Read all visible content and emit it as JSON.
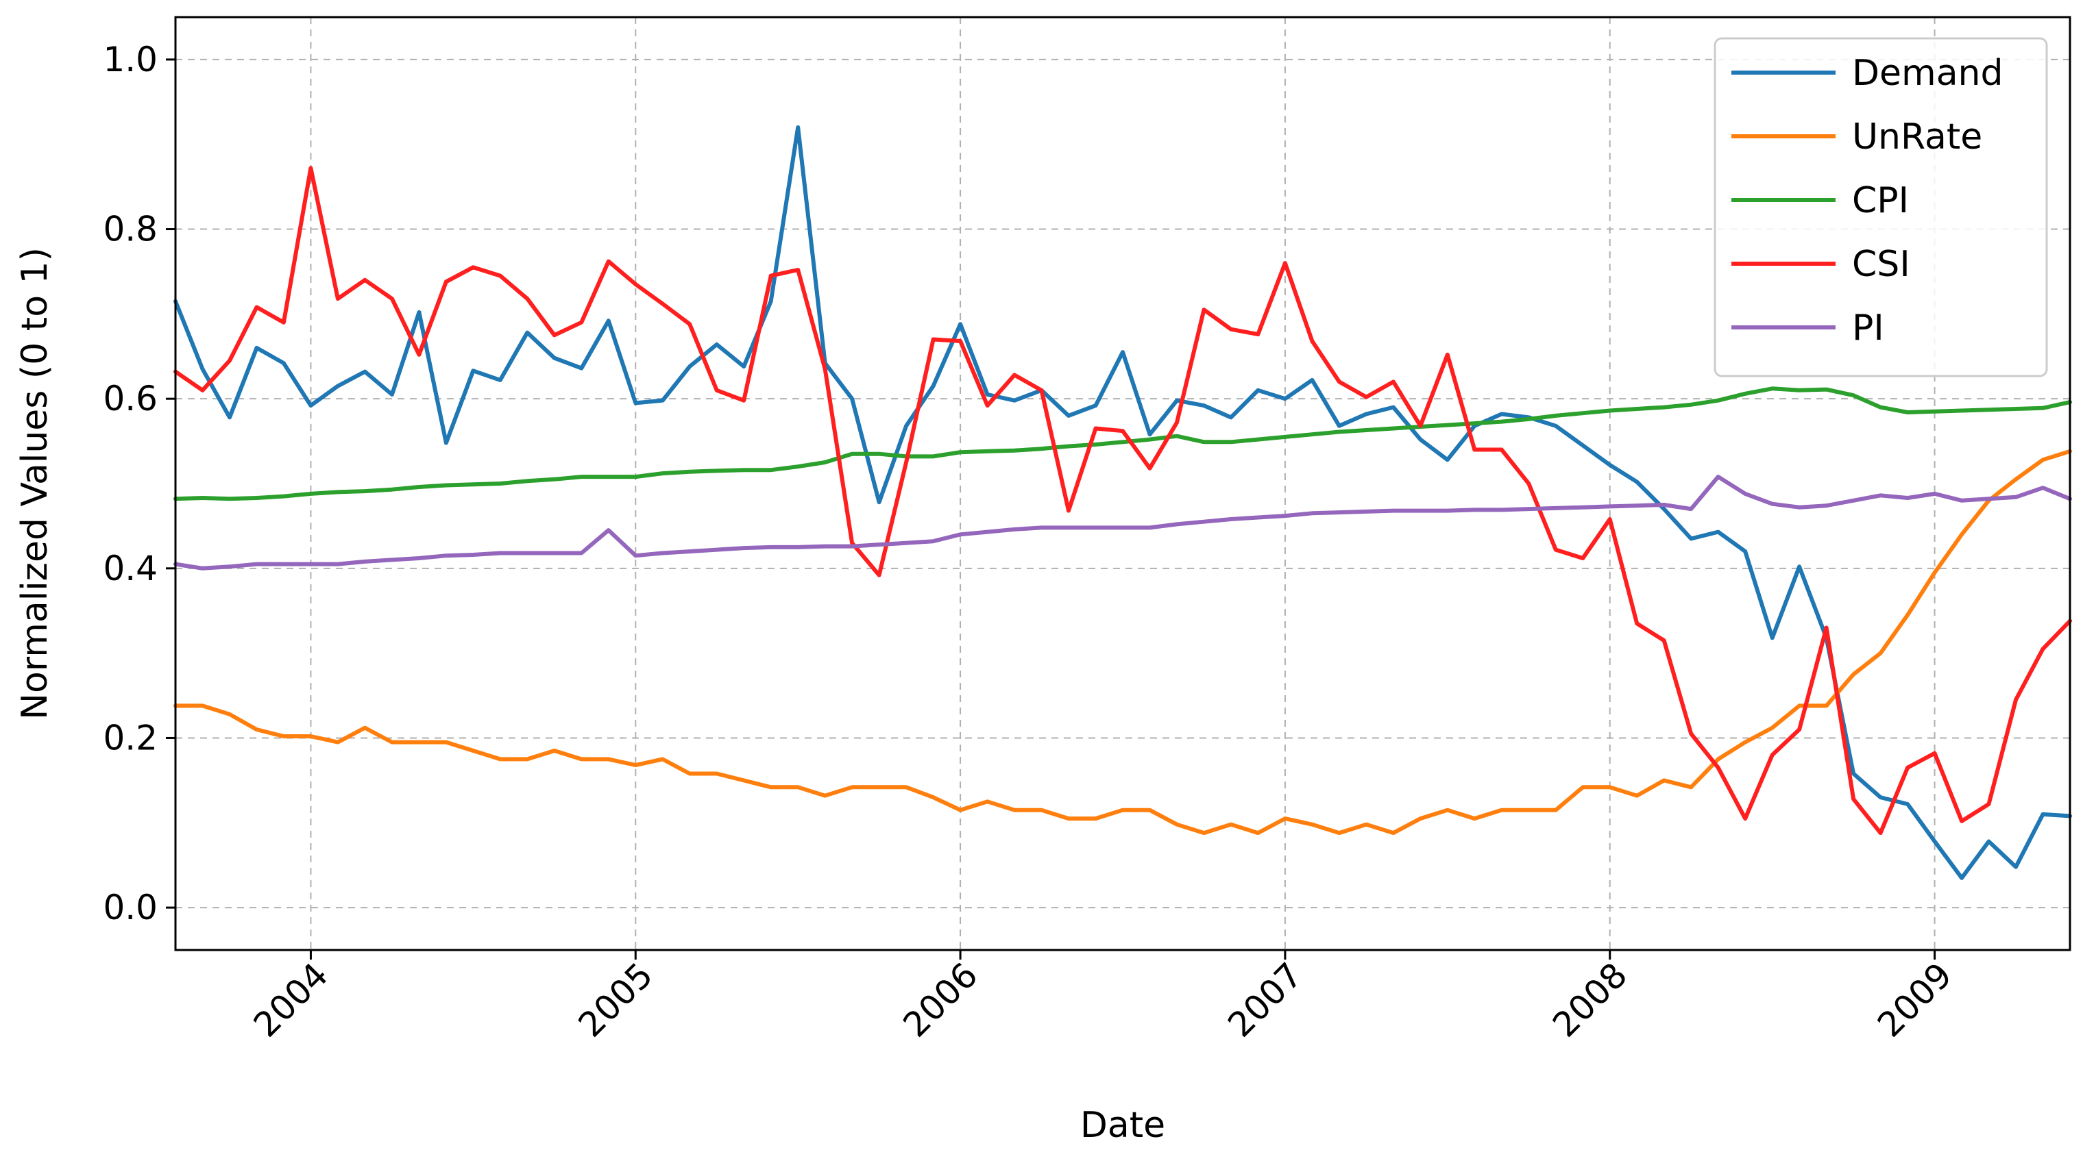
{
  "chart_data": {
    "type": "line",
    "title": "",
    "xlabel": "Date",
    "ylabel": "Normalized Values (0 to 1)",
    "xlim": [
      "2003-08-01",
      "2009-06-01"
    ],
    "ylim": [
      -0.05,
      1.05
    ],
    "x_ticks": [
      "2004",
      "2005",
      "2006",
      "2007",
      "2008",
      "2009"
    ],
    "y_ticks": [
      "0.0",
      "0.2",
      "0.4",
      "0.6",
      "0.8",
      "1.0"
    ],
    "grid": true,
    "legend": "top-right",
    "start_month": "2003-08",
    "series": [
      {
        "name": "Demand",
        "color": "#1f77b4",
        "values": [
          0.715,
          0.635,
          0.578,
          0.66,
          0.642,
          0.592,
          0.615,
          0.632,
          0.605,
          0.702,
          0.548,
          0.633,
          0.622,
          0.678,
          0.648,
          0.636,
          0.692,
          0.595,
          0.598,
          0.638,
          0.664,
          0.638,
          0.715,
          0.92,
          0.642,
          0.6,
          0.478,
          0.568,
          0.615,
          0.688,
          0.605,
          0.598,
          0.61,
          0.58,
          0.592,
          0.655,
          0.558,
          0.598,
          0.592,
          0.578,
          0.61,
          0.6,
          0.622,
          0.568,
          0.582,
          0.59,
          0.552,
          0.528,
          0.568,
          0.582,
          0.578,
          0.568,
          0.545,
          0.522,
          0.502,
          0.47,
          0.435,
          0.443,
          0.42,
          0.318,
          0.402,
          0.318,
          0.158,
          0.13,
          0.122,
          0.078,
          0.035,
          0.078,
          0.048,
          0.11,
          0.108
        ]
      },
      {
        "name": "UnRate",
        "color": "#ff7f0e",
        "values": [
          0.238,
          0.238,
          0.228,
          0.21,
          0.202,
          0.202,
          0.195,
          0.212,
          0.195,
          0.195,
          0.195,
          0.185,
          0.175,
          0.175,
          0.185,
          0.175,
          0.175,
          0.168,
          0.175,
          0.158,
          0.158,
          0.15,
          0.142,
          0.142,
          0.132,
          0.142,
          0.142,
          0.142,
          0.13,
          0.115,
          0.125,
          0.115,
          0.115,
          0.105,
          0.105,
          0.115,
          0.115,
          0.098,
          0.088,
          0.098,
          0.088,
          0.105,
          0.098,
          0.088,
          0.098,
          0.088,
          0.105,
          0.115,
          0.105,
          0.115,
          0.115,
          0.115,
          0.142,
          0.142,
          0.132,
          0.15,
          0.142,
          0.175,
          0.195,
          0.212,
          0.238,
          0.238,
          0.275,
          0.3,
          0.345,
          0.395,
          0.44,
          0.48,
          0.505,
          0.528,
          0.538
        ]
      },
      {
        "name": "CPI",
        "color": "#2ca02c",
        "values": [
          0.482,
          0.483,
          0.482,
          0.483,
          0.485,
          0.488,
          0.49,
          0.491,
          0.493,
          0.496,
          0.498,
          0.499,
          0.5,
          0.503,
          0.505,
          0.508,
          0.508,
          0.508,
          0.512,
          0.514,
          0.515,
          0.516,
          0.516,
          0.52,
          0.525,
          0.535,
          0.535,
          0.532,
          0.532,
          0.537,
          0.538,
          0.539,
          0.541,
          0.544,
          0.546,
          0.549,
          0.552,
          0.556,
          0.549,
          0.549,
          0.552,
          0.555,
          0.558,
          0.561,
          0.563,
          0.565,
          0.567,
          0.569,
          0.571,
          0.573,
          0.576,
          0.58,
          0.583,
          0.586,
          0.588,
          0.59,
          0.593,
          0.598,
          0.606,
          0.612,
          0.61,
          0.611,
          0.604,
          0.59,
          0.584,
          0.585,
          0.586,
          0.587,
          0.588,
          0.589,
          0.596
        ]
      },
      {
        "name": "CSI",
        "color": "#ff1f1f",
        "values": [
          0.632,
          0.61,
          0.645,
          0.708,
          0.69,
          0.872,
          0.718,
          0.74,
          0.718,
          0.652,
          0.738,
          0.755,
          0.745,
          0.718,
          0.675,
          0.69,
          0.762,
          0.735,
          0.712,
          0.688,
          0.61,
          0.598,
          0.745,
          0.752,
          0.635,
          0.43,
          0.392,
          0.525,
          0.67,
          0.668,
          0.592,
          0.628,
          0.61,
          0.468,
          0.565,
          0.562,
          0.518,
          0.572,
          0.705,
          0.682,
          0.676,
          0.76,
          0.668,
          0.62,
          0.602,
          0.62,
          0.568,
          0.652,
          0.54,
          0.54,
          0.5,
          0.422,
          0.412,
          0.458,
          0.335,
          0.315,
          0.205,
          0.165,
          0.105,
          0.18,
          0.21,
          0.33,
          0.128,
          0.088,
          0.165,
          0.182,
          0.102,
          0.122,
          0.245,
          0.305,
          0.338
        ]
      },
      {
        "name": "PI",
        "color": "#9467bd",
        "values": [
          0.405,
          0.4,
          0.402,
          0.405,
          0.405,
          0.405,
          0.405,
          0.408,
          0.41,
          0.412,
          0.415,
          0.416,
          0.418,
          0.418,
          0.418,
          0.418,
          0.445,
          0.415,
          0.418,
          0.42,
          0.422,
          0.424,
          0.425,
          0.425,
          0.426,
          0.426,
          0.428,
          0.43,
          0.432,
          0.44,
          0.443,
          0.446,
          0.448,
          0.448,
          0.448,
          0.448,
          0.448,
          0.452,
          0.455,
          0.458,
          0.46,
          0.462,
          0.465,
          0.466,
          0.467,
          0.468,
          0.468,
          0.468,
          0.469,
          0.469,
          0.47,
          0.471,
          0.472,
          0.473,
          0.474,
          0.475,
          0.47,
          0.508,
          0.488,
          0.476,
          0.472,
          0.474,
          0.48,
          0.486,
          0.483,
          0.488,
          0.48,
          0.482,
          0.484,
          0.495,
          0.482
        ]
      }
    ]
  }
}
